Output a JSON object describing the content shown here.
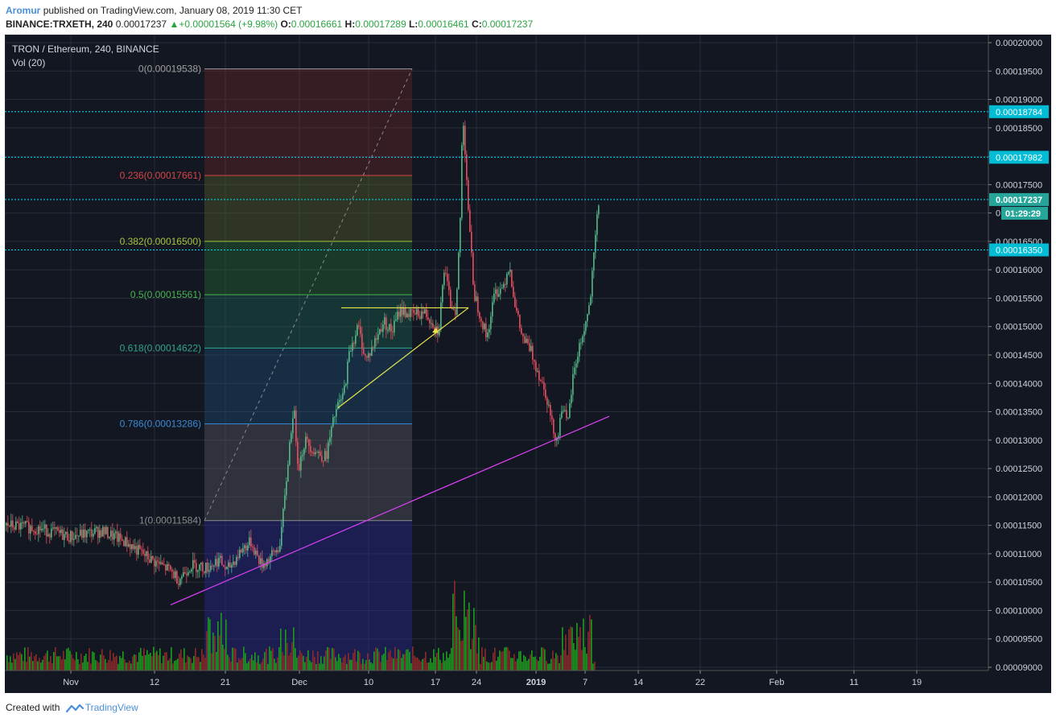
{
  "header": {
    "author": "Aromur",
    "published": "published on TradingView.com, January 08, 2019 11:30 CET",
    "symbol": "BINANCE:TRXETH, 240",
    "last": "0.00017237",
    "change": "+0.00001564 (+9.98%)",
    "o_label": "O:",
    "o": "0.00016661",
    "h_label": "H:",
    "h": "0.00017289",
    "l_label": "L:",
    "l": "0.00016461",
    "c_label": "C:",
    "c": "0.00017237"
  },
  "legend": {
    "title": "TRON / Ethereum, 240, BINANCE",
    "vol": "Vol (20)"
  },
  "footer": {
    "created": "Created with",
    "brand": "TradingView"
  },
  "colors": {
    "bg": "#131722",
    "grid": "#2a2e39",
    "up": "#53b987",
    "down": "#eb4d5c",
    "vol_up": "#1e9a1e",
    "vol_down": "#8b2a2a",
    "hline": "#00e5ff",
    "trend": "#e040fb",
    "triangle": "#e6e64a"
  },
  "chart_data": {
    "type": "candlestick",
    "title": "TRON / Ethereum, 240, BINANCE",
    "ylim": [
      9e-05,
      0.0002
    ],
    "y_ticks": [
      "0.00020000",
      "0.00019500",
      "0.00019000",
      "0.00018500",
      "0.00018000",
      "0.00017500",
      "0.00017000",
      "0.00016500",
      "0.00016000",
      "0.00015500",
      "0.00015000",
      "0.00014500",
      "0.00014000",
      "0.00013500",
      "0.00013000",
      "0.00012500",
      "0.00012000",
      "0.00011500",
      "0.00011000",
      "0.00010500",
      "0.00010000",
      "0.00009500",
      "0.00009000"
    ],
    "y_tick_values": [
      0.0002,
      0.000195,
      0.00019,
      0.000185,
      0.00018,
      0.000175,
      0.00017,
      0.000165,
      0.00016,
      0.000155,
      0.00015,
      0.000145,
      0.00014,
      0.000135,
      0.00013,
      0.000125,
      0.00012,
      0.000115,
      0.00011,
      0.000105,
      0.0001,
      9.5e-05,
      9e-05
    ],
    "x_ticks": [
      {
        "label": "Nov",
        "x": 82
      },
      {
        "label": "12",
        "x": 186
      },
      {
        "label": "21",
        "x": 274
      },
      {
        "label": "Dec",
        "x": 366
      },
      {
        "label": "10",
        "x": 452
      },
      {
        "label": "17",
        "x": 535
      },
      {
        "label": "24",
        "x": 586
      },
      {
        "label": "2019",
        "x": 660
      },
      {
        "label": "7",
        "x": 721
      },
      {
        "label": "14",
        "x": 787
      },
      {
        "label": "22",
        "x": 864
      },
      {
        "label": "Feb",
        "x": 959
      },
      {
        "label": "11",
        "x": 1055
      },
      {
        "label": "19",
        "x": 1133
      }
    ],
    "fib_levels": [
      {
        "label": "0(0.00019538)",
        "value": 0.00019538,
        "color": "#9e9e9e",
        "fill": "rgba(120,40,40,0.35)"
      },
      {
        "label": "0.236(0.00017661)",
        "value": 0.00017661,
        "color": "#d64545",
        "fill": "rgba(80,90,40,0.45)"
      },
      {
        "label": "0.382(0.00016500)",
        "value": 0.000165,
        "color": "#a5c23a",
        "fill": "rgba(40,110,50,0.40)"
      },
      {
        "label": "0.5(0.00015561)",
        "value": 0.00015561,
        "color": "#46b450",
        "fill": "rgba(30,110,90,0.35)"
      },
      {
        "label": "0.618(0.00014622)",
        "value": 0.00014622,
        "color": "#32a58c",
        "fill": "rgba(30,80,120,0.40)"
      },
      {
        "label": "0.786(0.00013286)",
        "value": 0.00013286,
        "color": "#3a8ad6",
        "fill": "rgba(90,90,100,0.40)"
      },
      {
        "label": "1(0.00011584)",
        "value": 0.00011584,
        "color": "#8c8c8c",
        "fill": "rgba(40,40,140,0.45)"
      }
    ],
    "hlines": [
      {
        "label": "0.00018784",
        "value": 0.00018784
      },
      {
        "label": "0.00017982",
        "value": 0.00017982
      },
      {
        "label": "0.00017237",
        "value": 0.00017237
      },
      {
        "label": "0.00016350",
        "value": 0.0001635
      }
    ],
    "countdown": "01:29:29",
    "price_path": [
      [
        0,
        0.000115
      ],
      [
        40,
        0.0001145
      ],
      [
        80,
        0.000113
      ],
      [
        120,
        0.000114
      ],
      [
        150,
        0.000112
      ],
      [
        180,
        0.000109
      ],
      [
        205,
        0.000107
      ],
      [
        215,
        0.0001055
      ],
      [
        230,
        0.000108
      ],
      [
        250,
        0.0001075
      ],
      [
        265,
        0.000109
      ],
      [
        275,
        0.000107
      ],
      [
        295,
        0.000111
      ],
      [
        305,
        0.000112
      ],
      [
        318,
        0.000108
      ],
      [
        330,
        0.0001095
      ],
      [
        340,
        0.000111
      ],
      [
        346,
        0.000118
      ],
      [
        352,
        0.000128
      ],
      [
        358,
        0.000136
      ],
      [
        364,
        0.000125
      ],
      [
        372,
        0.00013
      ],
      [
        385,
        0.000128
      ],
      [
        398,
        0.000127
      ],
      [
        410,
        0.000135
      ],
      [
        420,
        0.000138
      ],
      [
        428,
        0.000146
      ],
      [
        438,
        0.00015
      ],
      [
        448,
        0.000144
      ],
      [
        458,
        0.000147
      ],
      [
        470,
        0.000151
      ],
      [
        480,
        0.000149
      ],
      [
        490,
        0.000153
      ],
      [
        505,
        0.000152
      ],
      [
        520,
        0.0001525
      ],
      [
        530,
        0.000151
      ],
      [
        538,
        0.000149
      ],
      [
        545,
        0.00016
      ],
      [
        553,
        0.000154
      ],
      [
        560,
        0.000153
      ],
      [
        565,
        0.000169
      ],
      [
        568,
        0.000188
      ],
      [
        572,
        0.000179
      ],
      [
        576,
        0.000168
      ],
      [
        582,
        0.000156
      ],
      [
        590,
        0.000152
      ],
      [
        598,
        0.000148
      ],
      [
        608,
        0.000156
      ],
      [
        618,
        0.000157
      ],
      [
        626,
        0.000161
      ],
      [
        634,
        0.000153
      ],
      [
        642,
        0.000148
      ],
      [
        652,
        0.000146
      ],
      [
        662,
        0.000142
      ],
      [
        672,
        0.000138
      ],
      [
        680,
        0.000132
      ],
      [
        686,
        0.00013
      ],
      [
        692,
        0.000137
      ],
      [
        698,
        0.000132
      ],
      [
        705,
        0.000141
      ],
      [
        712,
        0.000146
      ],
      [
        720,
        0.00015
      ],
      [
        726,
        0.000154
      ],
      [
        731,
        0.000162
      ],
      [
        735,
        0.000169
      ],
      [
        738,
        0.0001724
      ]
    ]
  }
}
